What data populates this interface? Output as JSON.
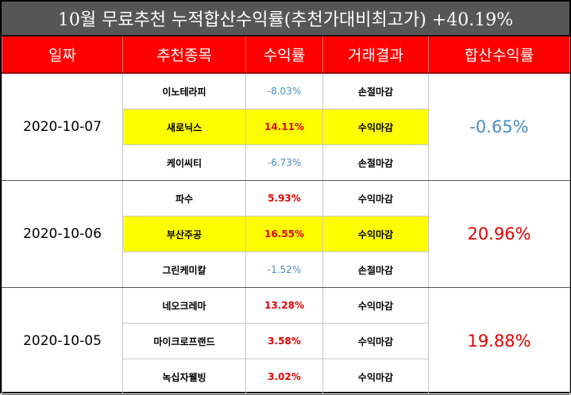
{
  "title": "10월 무료추천 누적합산수익률(추천가대비최고가) +40.19%",
  "headers": [
    "일짜",
    "추천종목",
    "수익률",
    "거래결과",
    "합산수익률"
  ],
  "groups": [
    {
      "date": "2020-10-07",
      "total": "-0.65%",
      "total_sign": "negative",
      "rows": [
        {
          "stock": "이노테라피",
          "return": "-8.03%",
          "result": "손절마감",
          "highlight": false,
          "sign": "negative"
        },
        {
          "stock": "새로닉스",
          "return": "14.11%",
          "result": "수익마감",
          "highlight": true,
          "sign": "positive"
        },
        {
          "stock": "케이씨티",
          "return": "-6.73%",
          "result": "손절마감",
          "highlight": false,
          "sign": "negative"
        }
      ]
    },
    {
      "date": "2020-10-06",
      "total": "20.96%",
      "total_sign": "positive",
      "rows": [
        {
          "stock": "파수",
          "return": "5.93%",
          "result": "수익마감",
          "highlight": false,
          "sign": "positive"
        },
        {
          "stock": "부산주공",
          "return": "16.55%",
          "result": "수익마감",
          "highlight": true,
          "sign": "positive"
        },
        {
          "stock": "그린케미칼",
          "return": "-1.52%",
          "result": "손절마감",
          "highlight": false,
          "sign": "negative"
        }
      ]
    },
    {
      "date": "2020-10-05",
      "total": "19.88%",
      "total_sign": "positive",
      "rows": [
        {
          "stock": "네오크레마",
          "return": "13.28%",
          "result": "수익마감",
          "highlight": false,
          "sign": "positive"
        },
        {
          "stock": "마이크로프랜드",
          "return": "3.58%",
          "result": "수익마감",
          "highlight": false,
          "sign": "positive"
        },
        {
          "stock": "녹십자웰빙",
          "return": "3.02%",
          "result": "수익마감",
          "highlight": false,
          "sign": "positive"
        }
      ]
    }
  ],
  "colors": {
    "title_bg": "#565656",
    "header_bg": "#ff0000",
    "highlight": "#ffff00",
    "positive": "#e00000",
    "negative": "#4a8bc4"
  }
}
